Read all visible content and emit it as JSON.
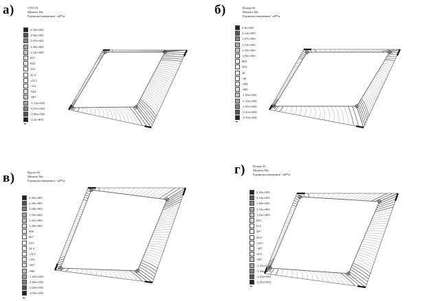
{
  "panels": [
    {
      "letter": "а)",
      "header": [
        "СТО+D",
        "Момент Му",
        "Единицы измерения - кН*м"
      ],
      "legend": [
        "2.24e+003",
        "2.02e+003",
        "1.67e+003",
        "1.39e+003",
        "1.12e+003",
        "837",
        "624",
        "312",
        "22.3",
        "-22.3",
        "-312",
        "-624",
        "-867",
        "-1.12e+003",
        "-1.67e+003",
        "-2.08e+003",
        "-2.3e+003"
      ]
    },
    {
      "letter": "б)",
      "header": [
        "Попер+D",
        "Момент Му",
        "Единицы измерения - кН*м"
      ],
      "legend": [
        "2.4e+003",
        "2.14e+003",
        "1.87e+003",
        "1.72e+003",
        "1.35e+003",
        "1.05e+003",
        "800",
        "394",
        "26",
        "-26",
        "-394",
        "-800",
        "-1.05e+003",
        "-1.35e+003",
        "-1.87e+003",
        "-2.41e+003",
        "-2.76e+003"
      ]
    },
    {
      "letter": "в)",
      "header": [
        "Вдоль+D",
        "Момент Му",
        "Единицы измерения - кН*м"
      ],
      "legend": [
        "2.43e+003",
        "2.29e+003",
        "1.84e+003",
        "1.55e+003",
        "1.41e+003",
        "1.29e+003",
        "900",
        "667",
        "333",
        "24.3",
        "-24.3",
        "-333",
        "-667",
        "-900",
        "-1.29e+003",
        "-1.84e+003",
        "-2.29e+003",
        "-2.58e+003"
      ]
    },
    {
      "letter": "г)",
      "header": [
        "Попер+D",
        "Момент Му",
        "Единицы измерения - кН*м"
      ],
      "legend": [
        "2.45e+003",
        "2.23e+003",
        "1.84e+003",
        "1.55e+003",
        "1.25e+003",
        "820",
        "613",
        "307",
        "24.5",
        "-24.5",
        "-307",
        "-613",
        "-857",
        "-1.25e+003",
        "-1.84e+003",
        "-2.23e+003",
        "-2.45e+003"
      ]
    }
  ]
}
